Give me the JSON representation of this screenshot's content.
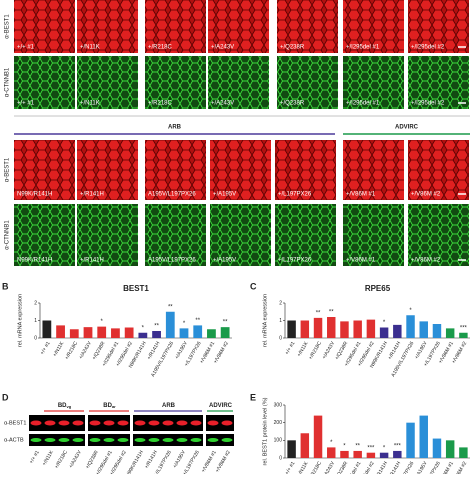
{
  "microscopy": {
    "row_labels": [
      "α-BEST1",
      "α-CTNNB1"
    ],
    "top_panels": [
      "+/+ #1",
      "+/N11K",
      "+/R218C",
      "+/A243V",
      "+/Q238R",
      "+/I295del #1",
      "+/I295del #2"
    ],
    "bottom_panels": [
      "N99K/R141H",
      "+/R141H",
      "A195V/L197PX26",
      "+/A195V",
      "+/L197PX26",
      "+/V86M #1",
      "+/V86M #2"
    ],
    "groups": [
      {
        "label": "ARB",
        "color": "#4b3a9a"
      },
      {
        "label": "ADVIRC",
        "color": "#1a9a4a"
      }
    ]
  },
  "chart_data": [
    {
      "type": "bar",
      "panel": "B",
      "title": "BEST1",
      "ylabel": "rel. mRNA expression",
      "categories": [
        "+/+ #1",
        "+/N11K",
        "+/R218C",
        "+/A243V",
        "+/Q238R",
        "+/I295del #1",
        "+/I295del #2",
        "N99K/R141H",
        "+/R141H",
        "A195V/L197PX26",
        "+/A195V",
        "+/L197PX26",
        "+/V86M #1",
        "+/V86M #2"
      ],
      "values": [
        1.0,
        0.72,
        0.5,
        0.62,
        0.65,
        0.55,
        0.6,
        0.3,
        0.4,
        1.5,
        0.55,
        0.72,
        0.5,
        0.62
      ],
      "colors": [
        "#222222",
        "#e03030",
        "#e03030",
        "#e03030",
        "#e03030",
        "#e03030",
        "#e03030",
        "#3b2f8f",
        "#3b2f8f",
        "#2a8fd8",
        "#2a8fd8",
        "#2a8fd8",
        "#1a9a4a",
        "#1a9a4a"
      ],
      "annotations": [
        null,
        null,
        null,
        null,
        "*",
        null,
        null,
        "*",
        "**",
        "**",
        "*",
        "**",
        null,
        "**"
      ],
      "ylim": [
        0,
        2
      ],
      "yticks": [
        0,
        1,
        2
      ]
    },
    {
      "type": "bar",
      "panel": "C",
      "title": "RPE65",
      "ylabel": "rel. mRNA expression",
      "categories": [
        "+/+ #1",
        "+/N11K",
        "+/R218C",
        "+/A243V",
        "+/Q238R",
        "+/I295del #1",
        "+/I295del #2",
        "N99K/R141H",
        "+/R141H",
        "A195V/L197PX26",
        "+/A195V",
        "+/L197PX26",
        "+/V86M #1",
        "+/V86M #2"
      ],
      "values": [
        1.0,
        1.0,
        1.15,
        1.2,
        0.95,
        1.0,
        1.05,
        0.6,
        0.75,
        1.3,
        0.95,
        0.8,
        0.55,
        0.3
      ],
      "colors": [
        "#222222",
        "#e03030",
        "#e03030",
        "#e03030",
        "#e03030",
        "#e03030",
        "#e03030",
        "#3b2f8f",
        "#3b2f8f",
        "#2a8fd8",
        "#2a8fd8",
        "#2a8fd8",
        "#1a9a4a",
        "#1a9a4a"
      ],
      "annotations": [
        null,
        null,
        "**",
        "**",
        null,
        null,
        null,
        "*",
        null,
        "*",
        null,
        null,
        null,
        "***"
      ],
      "ylim": [
        0,
        2
      ],
      "yticks": [
        0,
        1,
        2
      ]
    },
    {
      "type": "bar",
      "panel": "E",
      "ylabel": "rel. BEST1 protein level (%)",
      "categories": [
        "+/+ #1",
        "+/N11K",
        "+/R218C",
        "+/A243V",
        "+/Q238R",
        "+/I295del #1",
        "+/I295del #2",
        "N99K/R141H",
        "+/R141H",
        "A195V/L197PX26",
        "+/A195V",
        "+/L197PX26",
        "+/V86M #1",
        "+/V86M #2"
      ],
      "values": [
        100,
        140,
        240,
        60,
        40,
        40,
        30,
        30,
        40,
        200,
        240,
        110,
        100,
        60
      ],
      "colors": [
        "#222222",
        "#e03030",
        "#e03030",
        "#e03030",
        "#e03030",
        "#e03030",
        "#e03030",
        "#3b2f8f",
        "#3b2f8f",
        "#2a8fd8",
        "#2a8fd8",
        "#2a8fd8",
        "#1a9a4a",
        "#1a9a4a"
      ],
      "annotations": [
        null,
        null,
        null,
        "*",
        "*",
        "**",
        "***",
        "*",
        "***",
        null,
        null,
        null,
        null,
        null
      ],
      "ylim": [
        0,
        300
      ],
      "yticks": [
        0,
        100,
        200,
        300
      ]
    }
  ],
  "blot": {
    "panel": "D",
    "row_labels": [
      "α-BEST1",
      "α-ACTB"
    ],
    "groups": [
      {
        "label": "BD",
        "sub": "vg",
        "color": "#e03030"
      },
      {
        "label": "BD",
        "sub": "ar",
        "color": "#e03030"
      },
      {
        "label": "ARB",
        "color": "#4b3a9a"
      },
      {
        "label": "ADVIRC",
        "color": "#1a9a4a"
      }
    ],
    "lanes": [
      "+/+ #1",
      "+/N11K",
      "+/R218C",
      "+/A243V",
      "+/Q238R",
      "+/I295del #1",
      "+/I295del #2",
      "N99K/R141H",
      "+/R141H",
      "A195V/L197PX26",
      "+/A195V",
      "+/L197PX26",
      "+/V86M #1",
      "+/V86M #2"
    ]
  }
}
